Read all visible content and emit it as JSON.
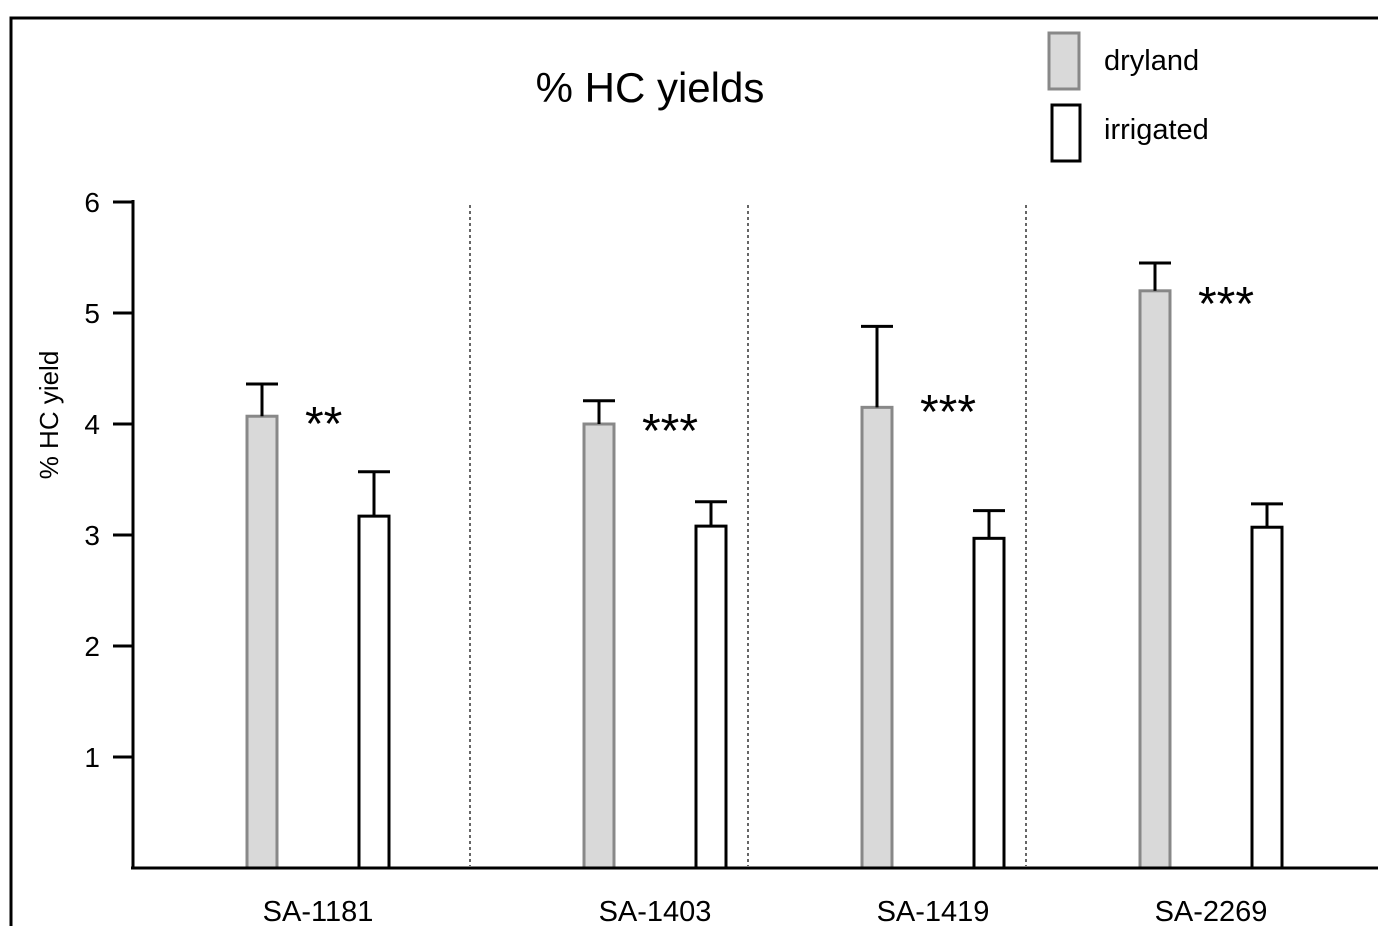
{
  "chart_data": {
    "type": "bar",
    "title": "% HC yields",
    "xlabel": "",
    "ylabel": "% HC yield",
    "ylim": [
      0,
      6
    ],
    "yticks": [
      1,
      2,
      3,
      4,
      5,
      6
    ],
    "grid": false,
    "legend_position": "top-right",
    "categories": [
      "SA-1181",
      "SA-1403",
      "SA-1419",
      "SA-2269"
    ],
    "series": [
      {
        "name": "dryland",
        "color": "#d9d9d9",
        "edge": "#888888",
        "values": [
          4.07,
          4.0,
          4.15,
          5.2
        ],
        "errors": [
          0.29,
          0.21,
          0.73,
          0.25
        ]
      },
      {
        "name": "irrigated",
        "color": "#ffffff",
        "edge": "#000000",
        "values": [
          3.17,
          3.08,
          2.97,
          3.07
        ],
        "errors": [
          0.4,
          0.22,
          0.25,
          0.21
        ]
      }
    ],
    "annotations": [
      "**",
      "***",
      "***",
      "***"
    ],
    "group_separators": "dotted"
  }
}
